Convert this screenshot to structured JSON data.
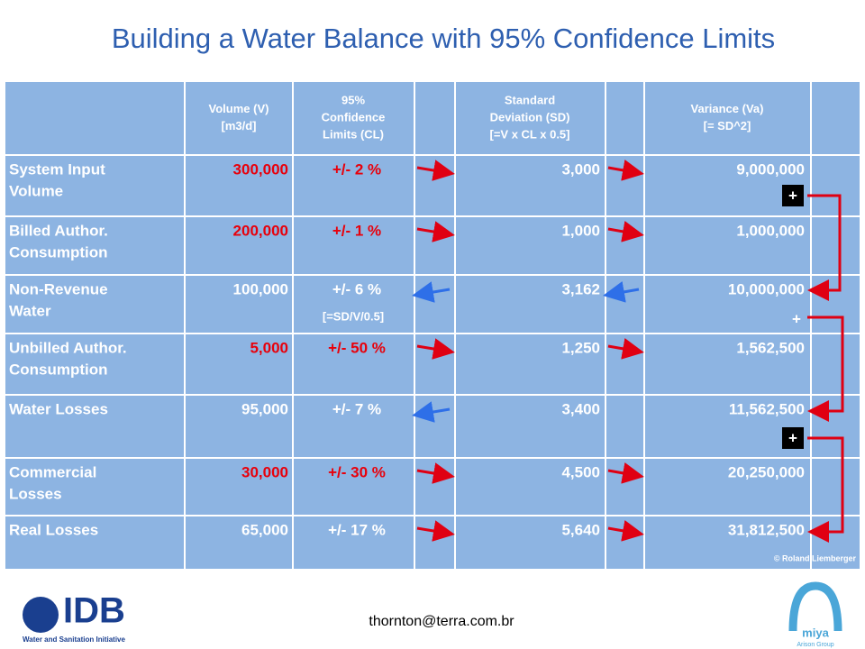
{
  "title": "Building a Water Balance with 95% Confidence Limits",
  "table": {
    "headers": [
      [
        "Volume (V)",
        "[m3/d]"
      ],
      [
        "95%",
        "Confidence",
        "Limits (CL)"
      ],
      [
        "Standard",
        "Deviation (SD)",
        "[=V x CL x 0.5]"
      ],
      [
        "Variance (Va)",
        "[= SD^2]"
      ]
    ],
    "rows": [
      {
        "label": [
          "System Input",
          "Volume"
        ],
        "volume": "300,000",
        "cl": "+/- 2 %",
        "sd": "3,000",
        "variance": "9,000,000",
        "highlight": true
      },
      {
        "label": [
          "Billed Author.",
          "Consumption"
        ],
        "volume": "200,000",
        "cl": "+/- 1 %",
        "sd": "1,000",
        "variance": "1,000,000",
        "highlight": true
      },
      {
        "label": [
          "Non-Revenue",
          "Water"
        ],
        "volume": "100,000",
        "cl": "+/- 6 %",
        "cl_note": "[=SD/V/0.5]",
        "sd": "3,162",
        "variance": "10,000,000",
        "highlight": false
      },
      {
        "label": [
          "Unbilled Author.",
          "Consumption"
        ],
        "volume": "5,000",
        "cl": "+/- 50 %",
        "sd": "1,250",
        "variance": "1,562,500",
        "highlight": true
      },
      {
        "label": [
          "Water Losses"
        ],
        "volume": "95,000",
        "cl": "+/- 7 %",
        "sd": "3,400",
        "variance": "11,562,500",
        "highlight": false
      },
      {
        "label": [
          "Commercial",
          "Losses"
        ],
        "volume": "30,000",
        "cl": "+/- 30 %",
        "sd": "4,500",
        "variance": "20,250,000",
        "highlight": true
      },
      {
        "label": [
          "Real Losses"
        ],
        "volume": "65,000",
        "cl": "+/- 17 %",
        "sd": "5,640",
        "variance": "31,812,500",
        "highlight": false
      }
    ],
    "plus_signs": [
      "+",
      "+",
      "+"
    ],
    "copyright": "© Roland Liemberger"
  },
  "footer": {
    "email": "thornton@terra.com.br",
    "left_logo": "IDB",
    "left_logo_sub": "Water and Sanitation Initiative",
    "right_logo": "miya",
    "right_logo_sub": "Arison Group"
  }
}
